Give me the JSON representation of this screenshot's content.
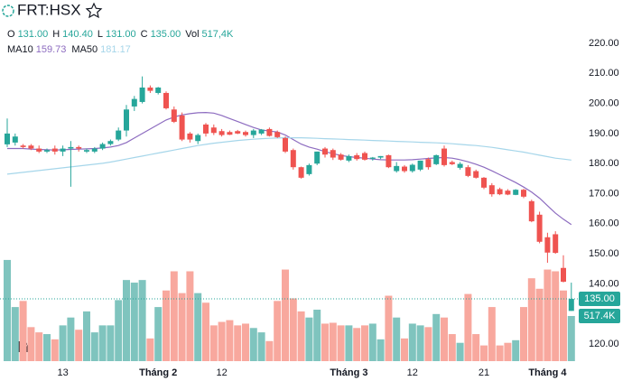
{
  "chart_data": {
    "type": "candlestick",
    "title": "FRT:HSX",
    "ohlc_legend": [
      {
        "key": "O",
        "value": "131.00"
      },
      {
        "key": "H",
        "value": "140.40"
      },
      {
        "key": "L",
        "value": "131.00"
      },
      {
        "key": "C",
        "value": "135.00"
      },
      {
        "key": "Vol",
        "value": "517,4K"
      }
    ],
    "up_color": "#26a69a",
    "down_color": "#ef5350",
    "volume_up_color": "#7fc4be",
    "volume_down_color": "#f8a89e",
    "categories": [
      null,
      null,
      null,
      null,
      null,
      null,
      null,
      "13",
      null,
      null,
      null,
      null,
      null,
      null,
      null,
      null,
      null,
      null,
      null,
      "Tháng 2",
      null,
      null,
      null,
      null,
      null,
      null,
      null,
      "12",
      null,
      null,
      null,
      null,
      null,
      null,
      null,
      null,
      null,
      null,
      null,
      null,
      null,
      null,
      null,
      "Tháng 3",
      null,
      null,
      null,
      null,
      null,
      null,
      null,
      "12",
      null,
      null,
      null,
      null,
      null,
      null,
      null,
      null,
      "21",
      null,
      null,
      null,
      null,
      null,
      null,
      null,
      "Tháng 4",
      null,
      null,
      null
    ],
    "open": [
      186.4,
      187,
      186,
      186,
      185,
      184,
      185,
      184,
      185,
      185.5,
      184,
      184,
      185,
      186.5,
      188,
      191,
      199,
      200.5,
      205.3,
      203.5,
      203.5,
      198,
      196,
      190,
      187.5,
      193,
      192,
      190.8,
      190.5,
      190.8,
      190.5,
      189.5,
      190,
      191.5,
      190.5,
      188.5,
      184.5,
      178.8,
      176.5,
      180,
      185,
      184.5,
      183,
      181,
      182.8,
      183.5,
      181.6,
      182,
      182.8,
      177.5,
      179,
      177.5,
      178,
      181.5,
      179.8,
      185,
      180.5,
      178.6,
      178.8,
      177.5,
      175.3,
      172.8,
      171.5,
      171,
      169.6,
      171.3,
      167.5,
      163,
      155.5,
      156.5,
      145.3,
      131
    ],
    "high": [
      195,
      190,
      186.5,
      186.5,
      186,
      185,
      186,
      186,
      187.5,
      186,
      185,
      185.5,
      187,
      188,
      192,
      199.5,
      202.5,
      209,
      206,
      205.5,
      204,
      199,
      197,
      190.5,
      190,
      193.5,
      193,
      191.5,
      191,
      191.2,
      191,
      191.5,
      191.5,
      192,
      191,
      189,
      185,
      179,
      180,
      184,
      185.5,
      185,
      183.5,
      183,
      183.5,
      184,
      182.2,
      182.5,
      183,
      180.5,
      179.5,
      180,
      181,
      182,
      183,
      186,
      181,
      180.5,
      179.5,
      178,
      175.5,
      173.5,
      172,
      171.5,
      171.5,
      171.6,
      168,
      164,
      157,
      157.5,
      149.5,
      140.4
    ],
    "low": [
      185.5,
      186,
      185,
      184.5,
      183.5,
      183.5,
      183,
      182.5,
      172.3,
      184,
      183.5,
      183.5,
      184.5,
      186,
      187.5,
      189,
      197.5,
      200,
      203.5,
      203,
      198,
      193.5,
      187.5,
      187,
      186.5,
      189,
      189.5,
      189,
      189.5,
      189.8,
      189,
      188.5,
      189.5,
      189,
      188.5,
      183.5,
      178,
      175,
      176,
      179.5,
      182,
      181.2,
      181,
      180.5,
      181,
      181,
      181,
      181.5,
      178.5,
      177,
      177,
      177,
      177.5,
      178,
      179.5,
      179,
      179.5,
      178,
      175.5,
      175,
      171.5,
      169,
      169.5,
      169.5,
      169.5,
      168.5,
      160.5,
      153.5,
      147,
      150,
      140.5,
      131
    ],
    "close": [
      190,
      189,
      185.5,
      185,
      184,
      184.5,
      184,
      185,
      185.5,
      185,
      184.5,
      185,
      186.5,
      187.5,
      191,
      198,
      201.5,
      205.3,
      204.2,
      205.3,
      198.4,
      193.9,
      188,
      188,
      189.5,
      190,
      190.2,
      189.5,
      189.6,
      190,
      189.5,
      191,
      191.3,
      189.2,
      188.8,
      184,
      178.8,
      175.3,
      179.5,
      184,
      183,
      182,
      181.3,
      182.5,
      181.5,
      181.3,
      182,
      182.5,
      178.8,
      179.2,
      177.5,
      179.6,
      181,
      178.8,
      182.8,
      179.5,
      179.8,
      179.9,
      175.9,
      175.3,
      172,
      169.8,
      169.8,
      169.7,
      171.3,
      169,
      160.8,
      154,
      150.4,
      150.3,
      140.7,
      135
    ],
    "volume": [
      1160,
      620,
      690,
      390,
      330,
      310,
      250,
      410,
      500,
      360,
      570,
      330,
      410,
      410,
      700,
      930,
      900,
      930,
      260,
      620,
      810,
      1030,
      780,
      1030,
      780,
      670,
      410,
      450,
      470,
      410,
      430,
      380,
      330,
      230,
      690,
      1050,
      720,
      570,
      500,
      590,
      430,
      440,
      410,
      410,
      380,
      410,
      430,
      250,
      750,
      500,
      260,
      430,
      410,
      390,
      540,
      500,
      310,
      210,
      770,
      310,
      180,
      620,
      180,
      210,
      240,
      620,
      950,
      830,
      1050,
      1030,
      810,
      517.4
    ],
    "last_volume_label": "517.4K",
    "last_price_label": "135.00",
    "ma": [
      {
        "name": "MA10",
        "last_label": "159.73",
        "color": "#8d6cc0",
        "values": [
          185,
          185,
          185,
          184.8,
          184.7,
          184.6,
          184.5,
          184.6,
          184.7,
          184.8,
          184.9,
          185,
          185.2,
          185.5,
          186,
          187,
          188.5,
          190,
          191.5,
          193,
          194.5,
          195.5,
          196.2,
          196.6,
          196.9,
          197,
          196.8,
          196,
          195,
          194,
          193,
          192,
          191.2,
          190.8,
          190.5,
          189.5,
          188,
          186.5,
          185.5,
          184.8,
          184,
          183.3,
          182.7,
          182.3,
          182,
          181.8,
          181.5,
          181.3,
          181.2,
          181.2,
          181.2,
          181.3,
          181.5,
          181.7,
          181.9,
          182,
          181.8,
          181.3,
          180.6,
          179.8,
          178.8,
          177.6,
          176.3,
          175,
          173.7,
          172.2,
          170.5,
          168.5,
          166,
          163.5,
          161.5,
          159.73
        ]
      },
      {
        "name": "MA50",
        "last_label": "181.17",
        "color": "#a6d6ea",
        "values": [
          176.5,
          176.8,
          177.1,
          177.4,
          177.7,
          178,
          178.3,
          178.6,
          178.9,
          179.2,
          179.5,
          179.8,
          180.1,
          180.5,
          181,
          181.5,
          182,
          182.5,
          183,
          183.5,
          184,
          184.5,
          185,
          185.5,
          186,
          186.4,
          186.8,
          187.1,
          187.4,
          187.7,
          187.9,
          188.1,
          188.3,
          188.4,
          188.5,
          188.6,
          188.6,
          188.6,
          188.5,
          188.4,
          188.3,
          188.2,
          188.1,
          188,
          187.9,
          187.8,
          187.7,
          187.6,
          187.5,
          187.4,
          187.3,
          187.2,
          187.1,
          187,
          186.9,
          186.8,
          186.6,
          186.4,
          186.2,
          186,
          185.7,
          185.4,
          185,
          184.6,
          184.2,
          183.8,
          183.3,
          182.8,
          182.3,
          181.8,
          181.5,
          181.17
        ]
      }
    ],
    "ylim": [
      120,
      220
    ],
    "yticks": [
      {
        "value": 120,
        "label": "120.00"
      },
      {
        "value": 130,
        "label": "130.00"
      },
      {
        "value": 140,
        "label": "140.00"
      },
      {
        "value": 150,
        "label": "150.00"
      },
      {
        "value": 160,
        "label": "160.00"
      },
      {
        "value": 170,
        "label": "170.00"
      },
      {
        "value": 180,
        "label": "180.00"
      },
      {
        "value": 190,
        "label": "190.00"
      },
      {
        "value": 200,
        "label": "200.00"
      },
      {
        "value": 210,
        "label": "210.00"
      },
      {
        "value": 220,
        "label": "220.00"
      }
    ]
  }
}
